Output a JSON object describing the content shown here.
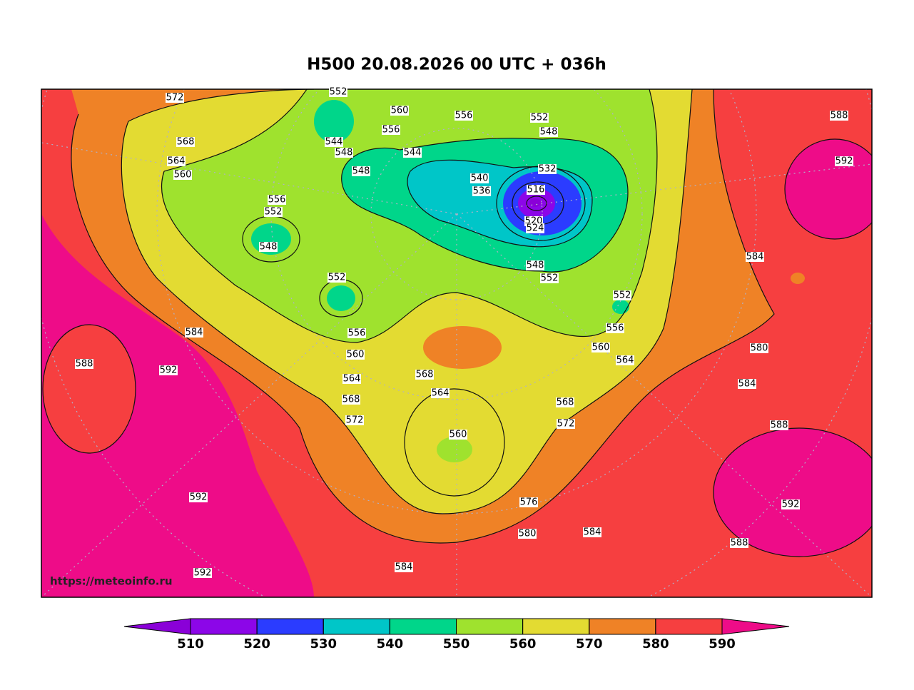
{
  "title": "H500  20.08.2026 00 UTC + 036h",
  "watermark": "https://meteoinfo.ru",
  "colorbar": {
    "levels": [
      510,
      520,
      530,
      540,
      550,
      560,
      570,
      580,
      590
    ],
    "colors": [
      "#8a00d8",
      "#8c06e8",
      "#2b3cff",
      "#00c6c8",
      "#00d68a",
      "#9fe22e",
      "#e3db32",
      "#ef8226",
      "#f63f40",
      "#ee0c88"
    ]
  },
  "contour_labels": [
    572,
    552,
    560,
    556,
    552,
    548,
    556,
    568,
    544,
    548,
    548,
    544,
    564,
    560,
    540,
    536,
    532,
    516,
    520,
    524,
    548,
    552,
    556,
    552,
    548,
    552,
    552,
    556,
    560,
    564,
    584,
    556,
    560,
    564,
    568,
    572,
    568,
    564,
    560,
    568,
    572,
    576,
    580,
    584,
    584,
    592,
    592,
    588,
    592,
    588,
    592,
    584,
    580,
    584,
    588,
    592,
    588
  ]
}
